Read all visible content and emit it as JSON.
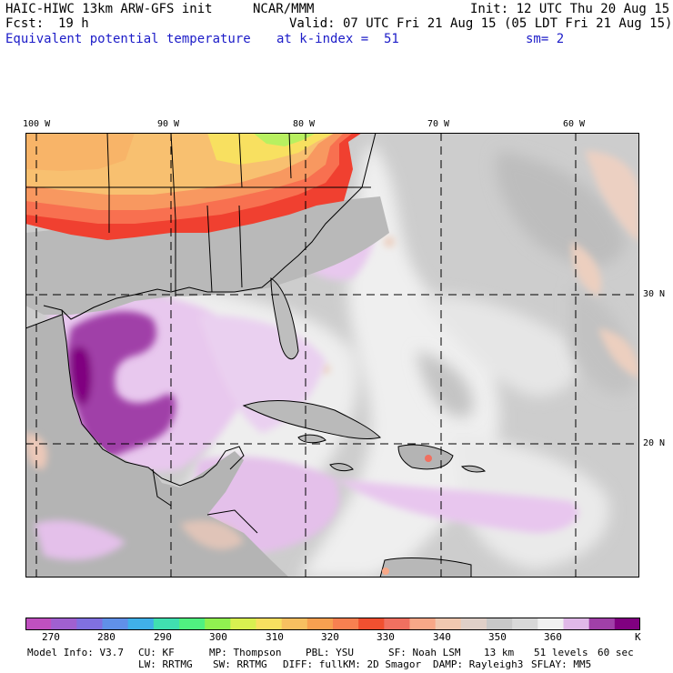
{
  "header": {
    "title": "HAIC-HIWC 13km ARW-GFS init",
    "center": "NCAR/MMM",
    "init": "Init: 12 UTC Thu 20 Aug 15",
    "fcst_label": "Fcst:",
    "fcst_value": "19 h",
    "valid": "Valid: 07 UTC Fri 21 Aug 15 (05 LDT Fri 21 Aug 15)",
    "field": "Equivalent potential temperature",
    "level": "at k-index =  51",
    "smooth": "sm= 2"
  },
  "map": {
    "lon_labels": [
      "100 W",
      "90 W",
      "80 W",
      "70 W",
      "60 W"
    ],
    "lat_labels": [
      "30 N",
      "20 N"
    ],
    "background_color": "#cfcfcf",
    "land_color": "#b8b8b8",
    "ocean_color": "#eeeeee"
  },
  "colorbar": {
    "colors": [
      "#c050c0",
      "#a060d0",
      "#8070e0",
      "#6090e8",
      "#40b0e8",
      "#40e0b0",
      "#50f080",
      "#90f050",
      "#d8f050",
      "#f8e060",
      "#f8c060",
      "#f8a050",
      "#f88050",
      "#f05030",
      "#f07060",
      "#f8a888",
      "#f0c8b0",
      "#e0d0c8",
      "#c8c8c8",
      "#d8d8d8",
      "#f0f0f0",
      "#e0b8e8",
      "#a040a8",
      "#800080"
    ],
    "labels": [
      "270",
      "280",
      "290",
      "300",
      "310",
      "320",
      "330",
      "340",
      "350",
      "360"
    ],
    "unit": "K"
  },
  "model_info": {
    "line1": [
      "Model Info: V3.7",
      "CU: KF",
      "MP: Thompson",
      "PBL: YSU",
      "SF: Noah LSM",
      "13 km",
      "51 levels",
      "60 sec"
    ],
    "line2": [
      "LW: RRTMG",
      "SW: RRTMG",
      "DIFF: full",
      "KM: 2D Smagor",
      "DAMP: Rayleigh3",
      "SFLAY: MM5"
    ]
  }
}
